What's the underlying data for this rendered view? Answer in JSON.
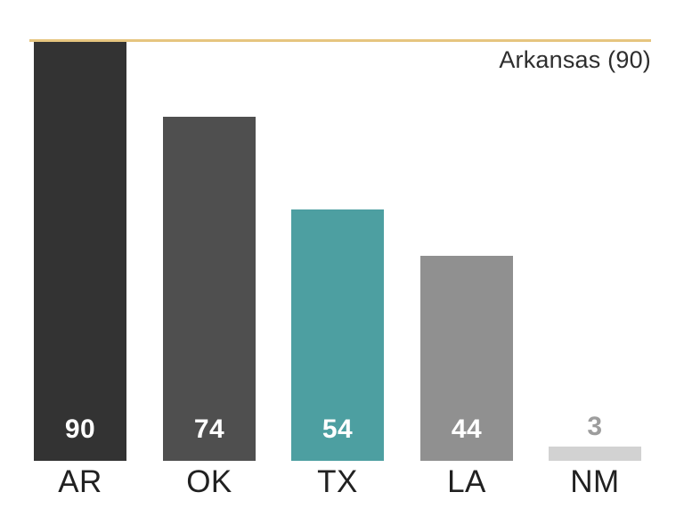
{
  "chart_data": {
    "type": "bar",
    "categories": [
      "AR",
      "OK",
      "TX",
      "LA",
      "NM"
    ],
    "values": [
      90,
      74,
      54,
      44,
      3
    ],
    "value_labels": [
      "90",
      "74",
      "54",
      "44",
      "3"
    ],
    "bar_colors": [
      "#333333",
      "#4f4f4f",
      "#4d9fa1",
      "#909090",
      "#d2d2d2"
    ],
    "value_label_colors": [
      "#ffffff",
      "#ffffff",
      "#ffffff",
      "#ffffff",
      "#9d9d9d"
    ],
    "ylim": [
      0,
      90
    ],
    "xlabel": "",
    "ylabel": "",
    "title": "",
    "grid": false,
    "legend": false,
    "reference_line": {
      "label": "Arkansas (90)",
      "value": 90,
      "color": "#e6c57f"
    },
    "category_label_color": "#212121",
    "annotation_color": "#2e2e2e"
  }
}
